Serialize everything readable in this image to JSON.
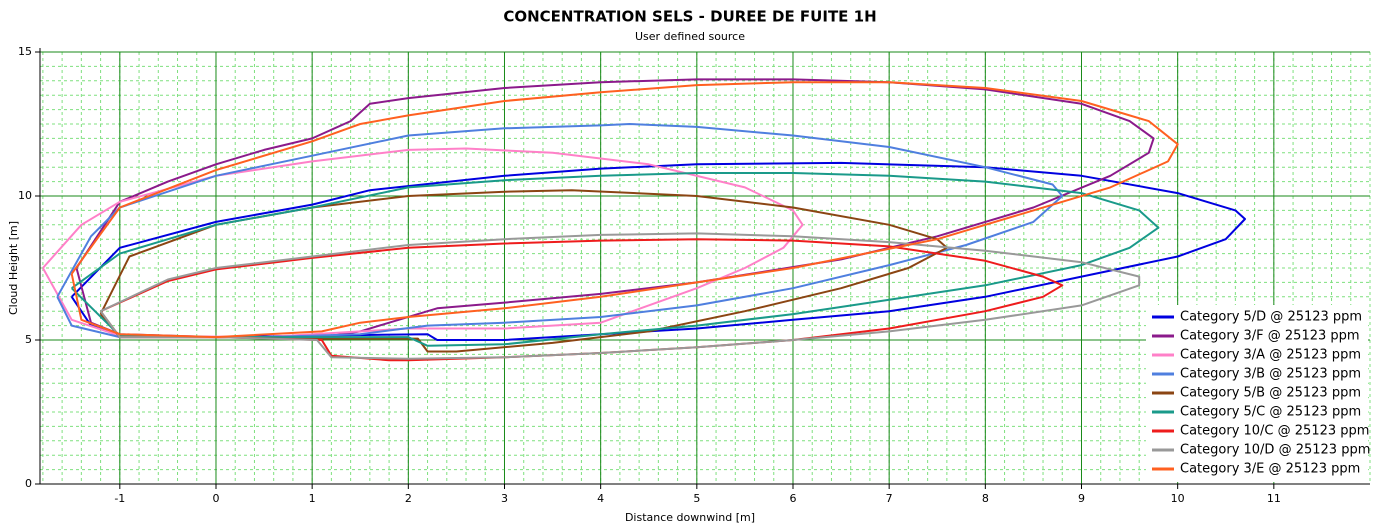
{
  "chart_data": {
    "type": "line",
    "title": "CONCENTRATION SELS - DUREE DE FUITE 1H",
    "subtitle": "User defined source",
    "xlabel": "Distance downwind [m]",
    "ylabel": "Cloud Height [m]",
    "xlim": [
      -1.83,
      12.0
    ],
    "ylim": [
      0,
      15
    ],
    "xticks": [
      -1,
      0,
      1,
      2,
      3,
      4,
      5,
      6,
      7,
      8,
      9,
      10,
      11
    ],
    "yticks": [
      0,
      5,
      10,
      15
    ],
    "grid": true,
    "legend": "lower right",
    "series": [
      {
        "name": "Category 5/D @ 25123 ppm",
        "color": "#0000e0",
        "x": [
          -1.5,
          -1,
          0,
          1,
          1.6,
          3,
          4,
          5,
          6.5,
          8,
          9,
          10,
          10.6,
          10.7,
          10.5,
          10,
          9,
          8,
          7,
          6,
          5,
          4,
          3,
          2.3,
          2.2,
          1,
          0,
          -1,
          -1.3,
          -1.5
        ],
        "values": [
          6.5,
          8.2,
          9.1,
          9.7,
          10.2,
          10.7,
          10.95,
          11.1,
          11.15,
          11.0,
          10.7,
          10.1,
          9.5,
          9.2,
          8.5,
          7.9,
          7.2,
          6.5,
          6.0,
          5.7,
          5.4,
          5.2,
          5.0,
          5.0,
          5.2,
          5.15,
          5.1,
          5.15,
          5.5,
          6.5
        ]
      },
      {
        "name": "Category 3/F @ 25123 ppm",
        "color": "#8b1a8b",
        "x": [
          -1.45,
          -1,
          -0.5,
          0,
          0.5,
          1,
          1.4,
          1.6,
          2,
          3,
          4,
          5,
          6,
          7,
          8,
          9,
          9.5,
          9.75,
          9.7,
          9.3,
          8.5,
          7.5,
          6.5,
          5,
          4,
          3,
          2.3,
          1.8,
          1.5,
          1,
          0,
          -1,
          -1.3,
          -1.45
        ],
        "values": [
          7.5,
          9.8,
          10.5,
          11.1,
          11.6,
          12.0,
          12.6,
          13.2,
          13.4,
          13.75,
          13.95,
          14.05,
          14.05,
          13.95,
          13.7,
          13.2,
          12.6,
          12.0,
          11.5,
          10.7,
          9.6,
          8.6,
          7.8,
          7.0,
          6.6,
          6.3,
          6.1,
          5.6,
          5.3,
          5.05,
          5.1,
          5.2,
          5.6,
          7.5
        ]
      },
      {
        "name": "Category 3/A @ 25123 ppm",
        "color": "#ff80c8",
        "x": [
          -1.8,
          -1.4,
          -1,
          0,
          1,
          2,
          2.6,
          3.5,
          4.5,
          5.5,
          6,
          6.1,
          5.9,
          5.5,
          5,
          4.5,
          4,
          3,
          2,
          1.5,
          0.5,
          -1,
          -1.5,
          -1.8
        ],
        "values": [
          7.5,
          9.0,
          9.8,
          10.7,
          11.2,
          11.6,
          11.65,
          11.5,
          11.1,
          10.3,
          9.5,
          9.0,
          8.2,
          7.5,
          6.8,
          6.2,
          5.6,
          5.4,
          5.4,
          5.3,
          5.1,
          5.15,
          5.7,
          7.5
        ]
      },
      {
        "name": "Category 3/B @ 25123 ppm",
        "color": "#4f7fdf",
        "x": [
          -1.65,
          -1.3,
          -1,
          0,
          1,
          2,
          3,
          4,
          4.3,
          5,
          6,
          7,
          8,
          8.7,
          8.8,
          8.5,
          7.8,
          7,
          6,
          5,
          4,
          3,
          2.2,
          1.5,
          0.5,
          -1,
          -1.5,
          -1.65
        ],
        "values": [
          6.5,
          8.6,
          9.6,
          10.7,
          11.4,
          12.1,
          12.35,
          12.45,
          12.5,
          12.4,
          12.1,
          11.7,
          11.0,
          10.4,
          10.0,
          9.1,
          8.3,
          7.6,
          6.8,
          6.2,
          5.8,
          5.6,
          5.5,
          5.2,
          5.1,
          5.1,
          5.5,
          6.5
        ]
      },
      {
        "name": "Category 5/B @ 25123 ppm",
        "color": "#8b4513",
        "x": [
          -1.2,
          -0.9,
          0,
          1,
          2,
          3,
          3.7,
          5,
          6,
          7,
          7.5,
          7.6,
          7.2,
          6.5,
          5.5,
          4.5,
          3.5,
          2.5,
          2.2,
          2.1,
          1,
          0,
          -1,
          -1.2
        ],
        "values": [
          5.9,
          7.9,
          9.0,
          9.6,
          10.0,
          10.15,
          10.2,
          10.0,
          9.6,
          9.0,
          8.5,
          8.2,
          7.5,
          6.8,
          6.0,
          5.3,
          4.9,
          4.6,
          4.6,
          5.05,
          5.05,
          5.1,
          5.1,
          5.9
        ]
      },
      {
        "name": "Category 5/C @ 25123 ppm",
        "color": "#1a9a8a",
        "x": [
          -1.5,
          -1,
          0,
          1,
          2,
          3,
          4,
          5,
          6,
          7,
          8,
          9,
          9.6,
          9.8,
          9.5,
          9,
          8,
          7,
          6,
          5,
          4,
          3,
          2.2,
          2,
          1,
          0,
          -1,
          -1.5
        ],
        "values": [
          6.8,
          8.0,
          9.0,
          9.6,
          10.3,
          10.55,
          10.7,
          10.8,
          10.8,
          10.7,
          10.5,
          10.1,
          9.5,
          8.9,
          8.2,
          7.6,
          6.9,
          6.4,
          5.9,
          5.5,
          5.2,
          4.85,
          4.8,
          5.1,
          5.1,
          5.1,
          5.15,
          6.8
        ]
      },
      {
        "name": "Category 10/C @ 25123 ppm",
        "color": "#ee1c1c",
        "x": [
          -1.2,
          -0.5,
          0,
          1,
          2,
          3,
          4,
          5,
          6,
          7,
          8,
          8.6,
          8.8,
          8.6,
          8,
          7,
          6,
          5,
          4,
          3,
          2,
          1.8,
          1.2,
          1.1,
          0,
          -1,
          -1.2
        ],
        "values": [
          6.0,
          7.05,
          7.45,
          7.85,
          8.2,
          8.35,
          8.45,
          8.5,
          8.45,
          8.25,
          7.75,
          7.2,
          6.9,
          6.5,
          6.0,
          5.4,
          5.0,
          4.75,
          4.55,
          4.4,
          4.3,
          4.3,
          4.45,
          5.0,
          5.1,
          5.1,
          6.0
        ]
      },
      {
        "name": "Category 10/D @ 25123 ppm",
        "color": "#999999",
        "x": [
          -1.2,
          -0.5,
          0,
          1,
          2,
          3,
          4,
          5,
          6,
          7,
          8,
          9,
          9.6,
          9.6,
          9,
          8,
          7,
          6,
          5,
          4,
          3,
          2,
          1.2,
          1.05,
          0,
          -1,
          -1.2
        ],
        "values": [
          6.0,
          7.1,
          7.5,
          7.9,
          8.3,
          8.5,
          8.65,
          8.7,
          8.6,
          8.4,
          8.1,
          7.7,
          7.2,
          6.9,
          6.2,
          5.7,
          5.3,
          5.0,
          4.75,
          4.55,
          4.4,
          4.35,
          4.4,
          5.0,
          5.1,
          5.1,
          6.0
        ]
      },
      {
        "name": "Category 3/E @ 25123 ppm",
        "color": "#ff6020",
        "x": [
          -1.5,
          -1,
          0,
          1,
          1.5,
          2,
          3,
          4,
          5,
          6,
          7,
          8,
          9,
          9.7,
          10,
          9.9,
          9.3,
          8.5,
          7.5,
          6,
          5,
          4,
          3,
          2,
          1.5,
          1.1,
          0,
          -1,
          -1.4,
          -1.5
        ],
        "values": [
          7.3,
          9.6,
          10.9,
          11.9,
          12.5,
          12.8,
          13.3,
          13.6,
          13.85,
          13.95,
          13.95,
          13.75,
          13.3,
          12.6,
          11.8,
          11.2,
          10.3,
          9.5,
          8.5,
          7.5,
          7.0,
          6.5,
          6.1,
          5.8,
          5.6,
          5.3,
          5.1,
          5.2,
          5.7,
          7.3
        ]
      }
    ]
  }
}
